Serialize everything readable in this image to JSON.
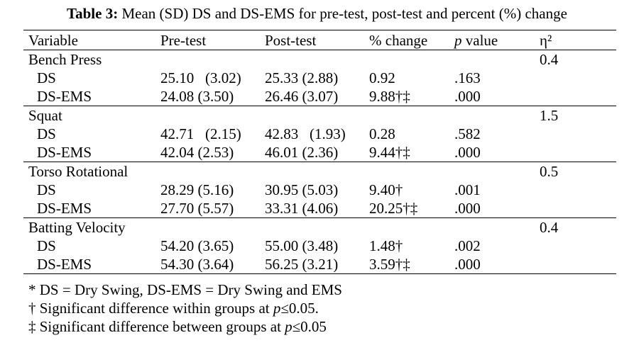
{
  "caption": {
    "label": "Table 3:",
    "text": " Mean (SD) DS and DS-EMS for pre-test, post-test and percent (%) change"
  },
  "headers": {
    "variable": "Variable",
    "pre": "Pre-test",
    "post": "Post-test",
    "change": "% change",
    "p_italic": "p",
    "p_rest": " value",
    "eta": "η²"
  },
  "groups": [
    {
      "name": "Bench Press",
      "eta": "0.4",
      "rows": [
        {
          "label": "DS",
          "pre": "25.10   (3.02)",
          "post": "25.33 (2.88)",
          "change": "0.92",
          "p": ".163"
        },
        {
          "label": "DS-EMS",
          "pre": "24.08 (3.50)",
          "post": "26.46 (3.07)",
          "change": "9.88†‡",
          "p": ".000"
        }
      ]
    },
    {
      "name": "Squat",
      "eta": "1.5",
      "rows": [
        {
          "label": "DS",
          "pre": "42.71   (2.15)",
          "post": "42.83   (1.93)",
          "change": "0.28",
          "p": ".582"
        },
        {
          "label": "DS-EMS",
          "pre": "42.04 (2.53)",
          "post": "46.01 (2.36)",
          "change": "9.44†‡",
          "p": ".000"
        }
      ]
    },
    {
      "name": "Torso Rotational",
      "eta": "0.5",
      "rows": [
        {
          "label": "DS",
          "pre": "28.29 (5.16)",
          "post": "30.95 (5.03)",
          "change": "9.40†",
          "p": ".001"
        },
        {
          "label": "DS-EMS",
          "pre": "27.70 (5.57)",
          "post": "33.31 (4.06)",
          "change": "20.25†‡",
          "p": ".000"
        }
      ]
    },
    {
      "name": "Batting Velocity",
      "eta": "0.4",
      "rows": [
        {
          "label": "DS",
          "pre": "54.20 (3.65)",
          "post": "55.00 (3.48)",
          "change": "1.48†",
          "p": ".002"
        },
        {
          "label": "DS-EMS",
          "pre": "54.30 (3.64)",
          "post": "56.25 (3.21)",
          "change": "3.59†‡",
          "p": ".000"
        }
      ]
    }
  ],
  "notes": {
    "abbrev": "* DS = Dry Swing, DS-EMS = Dry Swing and EMS",
    "within_prefix": "† Significant difference within groups at ",
    "within_p": "p",
    "within_suffix": "≤0.05.",
    "between_prefix": "‡ Significant difference between groups at ",
    "between_p": "p",
    "between_suffix": "≤0.05"
  }
}
